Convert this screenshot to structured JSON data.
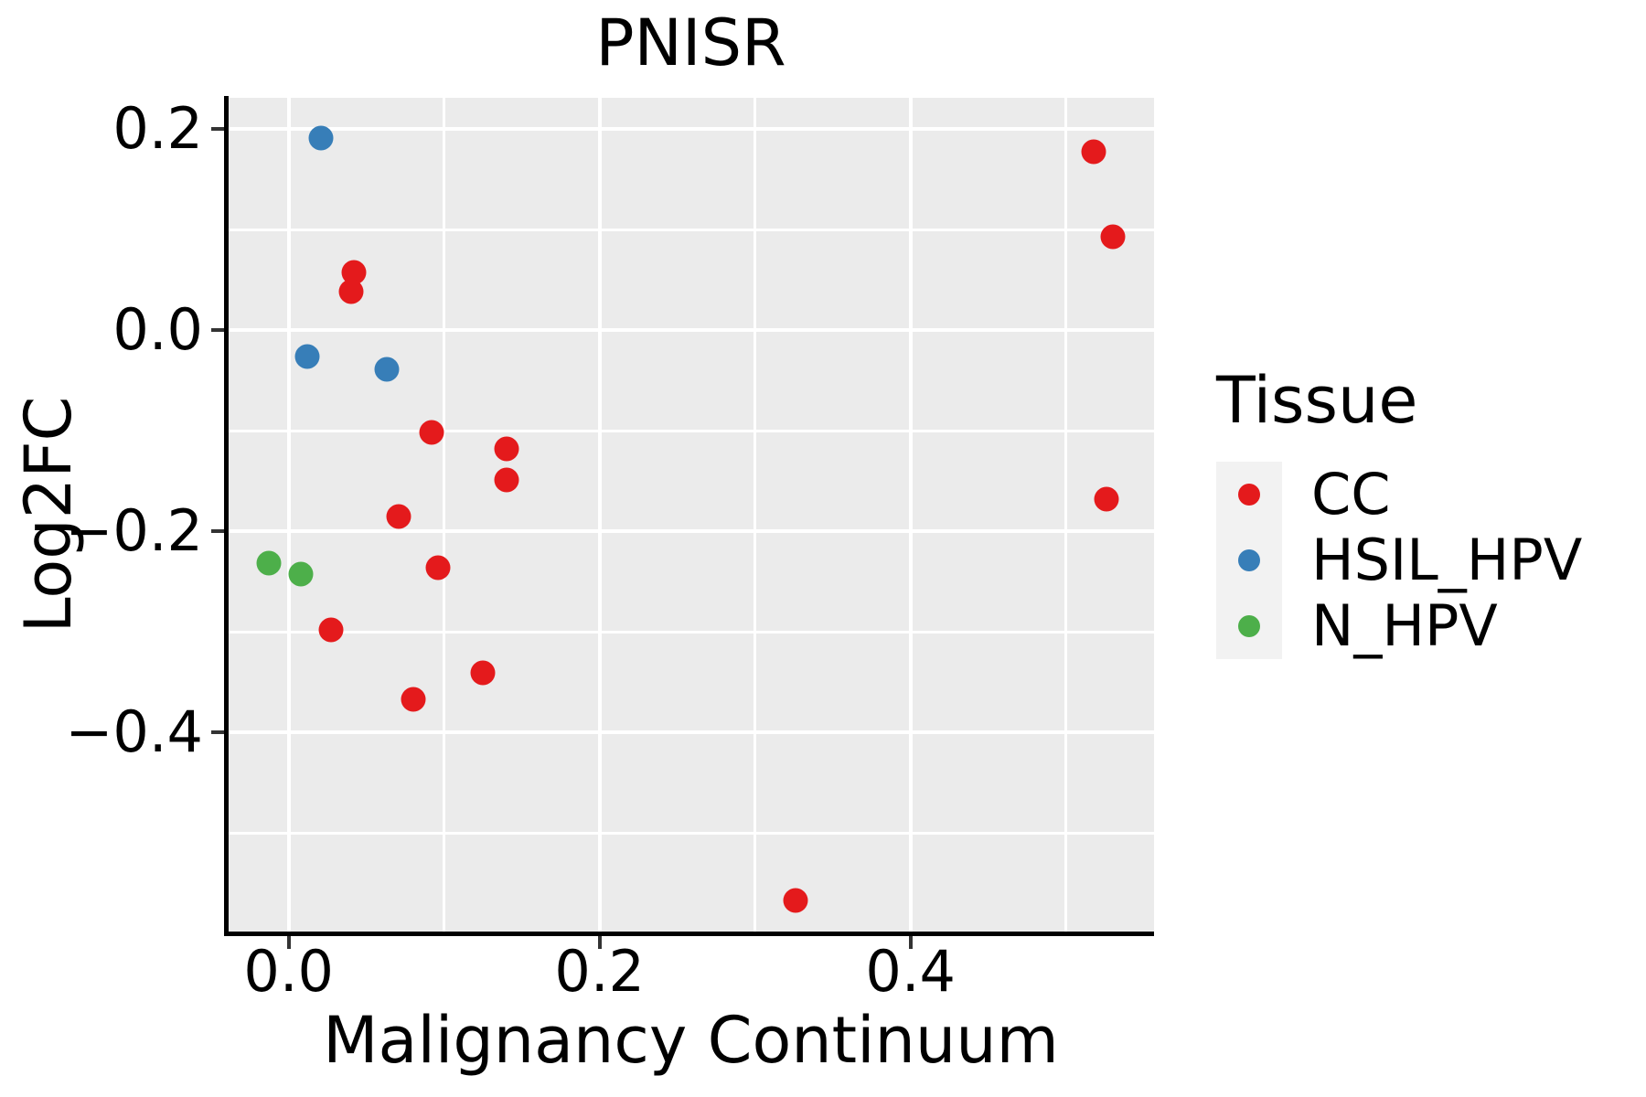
{
  "styles": {
    "panel_bg": "#EBEBEB",
    "grid_color": "#FFFFFF",
    "legend_key_bg": "#F2F2F2",
    "spine_color": "#000000",
    "tick_color": "#333333",
    "text_color": "#000000"
  },
  "chart_data": {
    "type": "scatter",
    "title": "PNISR",
    "xlabel": "Malignancy Continuum",
    "ylabel": "Log2FC",
    "legend_title": "Tissue",
    "legend_position": "right",
    "grid": true,
    "xlim": [
      -0.039,
      0.557
    ],
    "ylim": [
      -0.598,
      0.231
    ],
    "x_ticks": {
      "values": [
        0.0,
        0.2,
        0.4
      ],
      "labels": [
        "0.0",
        "0.2",
        "0.4"
      ],
      "minor": [
        0.1,
        0.3,
        0.5
      ]
    },
    "y_ticks": {
      "values": [
        0.2,
        0.0,
        -0.2,
        -0.4
      ],
      "labels": [
        "0.2",
        "0.0",
        "−0.2",
        "−0.4"
      ],
      "minor": [
        0.1,
        -0.1,
        -0.3,
        -0.5
      ]
    },
    "series": [
      {
        "name": "CC",
        "color": "#E41A1C",
        "points": [
          [
            0.042,
            0.057
          ],
          [
            0.04,
            0.038
          ],
          [
            0.092,
            -0.102
          ],
          [
            0.14,
            -0.118
          ],
          [
            0.14,
            -0.149
          ],
          [
            0.071,
            -0.185
          ],
          [
            0.096,
            -0.236
          ],
          [
            0.027,
            -0.298
          ],
          [
            0.125,
            -0.341
          ],
          [
            0.08,
            -0.367
          ],
          [
            0.518,
            0.177
          ],
          [
            0.53,
            0.093
          ],
          [
            0.526,
            -0.168
          ],
          [
            0.326,
            -0.567
          ]
        ]
      },
      {
        "name": "HSIL_HPV",
        "color": "#377EB8",
        "points": [
          [
            0.021,
            0.191
          ],
          [
            0.012,
            -0.026
          ],
          [
            0.063,
            -0.039
          ]
        ]
      },
      {
        "name": "N_HPV",
        "color": "#4DAF4A",
        "points": [
          [
            -0.013,
            -0.232
          ],
          [
            0.008,
            -0.243
          ]
        ]
      }
    ]
  }
}
